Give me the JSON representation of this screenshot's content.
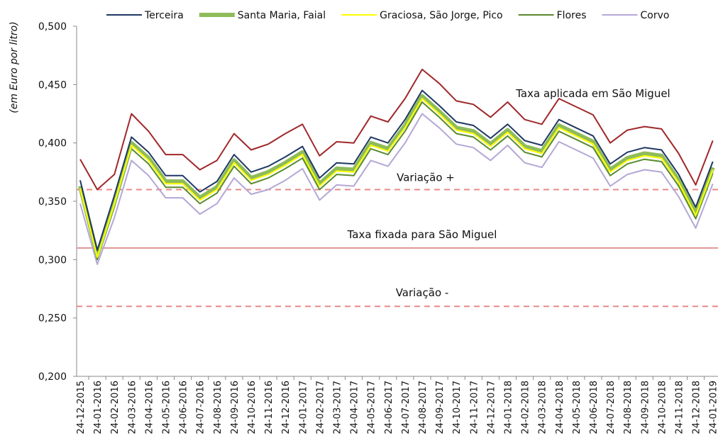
{
  "chart_data": {
    "type": "line",
    "y_label": "(em Euro por litro)",
    "ylim": [
      0.2,
      0.5
    ],
    "yticks": [
      {
        "value": 0.2,
        "label": "0,200"
      },
      {
        "value": 0.25,
        "label": "0,250"
      },
      {
        "value": 0.3,
        "label": "0,300"
      },
      {
        "value": 0.35,
        "label": "0,350"
      },
      {
        "value": 0.4,
        "label": "0,400"
      },
      {
        "value": 0.45,
        "label": "0,450"
      },
      {
        "value": 0.5,
        "label": "0,500"
      }
    ],
    "grid": false,
    "legend": "top",
    "categories": [
      "24-12-2015",
      "24-01-2016",
      "24-02-2016",
      "24-03-2016",
      "24-04-2016",
      "24-05-2016",
      "24-06-2016",
      "24-07-2016",
      "24-08-2016",
      "24-09-2016",
      "24-10-2016",
      "24-11-2016",
      "24-12-2016",
      "24-01-2017",
      "24-02-2017",
      "24-03-2017",
      "24-04-2017",
      "24-05-2017",
      "24-06-2017",
      "24-07-2017",
      "24-08-2017",
      "24-09-2017",
      "24-10-2017",
      "24-11-2017",
      "24-12-2017",
      "24-01-2018",
      "24-02-2018",
      "24-03-2018",
      "24-04-2018",
      "24-05-2018",
      "24-06-2018",
      "24-07-2018",
      "24-08-2018",
      "24-09-2018",
      "24-10-2018",
      "24-11-2018",
      "24-12-2018",
      "24-01-2019"
    ],
    "series": [
      {
        "name": "Terceira",
        "color": "#1f3864",
        "width": 2,
        "in_legend": true,
        "values": [
          0.368,
          0.308,
          0.355,
          0.405,
          0.392,
          0.372,
          0.372,
          0.358,
          0.367,
          0.39,
          0.375,
          0.38,
          0.388,
          0.397,
          0.37,
          0.383,
          0.382,
          0.405,
          0.4,
          0.42,
          0.445,
          0.432,
          0.418,
          0.415,
          0.404,
          0.416,
          0.402,
          0.398,
          0.42,
          0.413,
          0.406,
          0.382,
          0.392,
          0.396,
          0.394,
          0.373,
          0.345,
          0.384
        ]
      },
      {
        "name": "Santa Maria, Faial",
        "color": "#8fbc5a",
        "width": 6,
        "in_legend": true,
        "values": [
          0.363,
          0.304,
          0.35,
          0.4,
          0.387,
          0.367,
          0.367,
          0.353,
          0.362,
          0.385,
          0.37,
          0.375,
          0.383,
          0.392,
          0.365,
          0.378,
          0.377,
          0.4,
          0.395,
          0.415,
          0.44,
          0.427,
          0.413,
          0.41,
          0.399,
          0.411,
          0.397,
          0.393,
          0.415,
          0.408,
          0.401,
          0.377,
          0.387,
          0.391,
          0.389,
          0.368,
          0.34,
          0.379
        ]
      },
      {
        "name": "Graciosa, São Jorge, Pico",
        "color": "#ffff00",
        "width": 2,
        "in_legend": true,
        "values": [
          0.361,
          0.302,
          0.348,
          0.398,
          0.385,
          0.365,
          0.365,
          0.351,
          0.36,
          0.383,
          0.368,
          0.373,
          0.381,
          0.39,
          0.363,
          0.376,
          0.375,
          0.398,
          0.393,
          0.413,
          0.438,
          0.425,
          0.411,
          0.408,
          0.397,
          0.409,
          0.395,
          0.391,
          0.413,
          0.406,
          0.399,
          0.375,
          0.385,
          0.389,
          0.387,
          0.366,
          0.338,
          0.377
        ]
      },
      {
        "name": "Flores",
        "color": "#5a8a2e",
        "width": 2,
        "in_legend": true,
        "values": [
          0.358,
          0.3,
          0.345,
          0.395,
          0.382,
          0.362,
          0.362,
          0.348,
          0.357,
          0.38,
          0.365,
          0.37,
          0.378,
          0.387,
          0.36,
          0.373,
          0.372,
          0.395,
          0.39,
          0.41,
          0.435,
          0.422,
          0.408,
          0.405,
          0.394,
          0.406,
          0.392,
          0.388,
          0.41,
          0.403,
          0.396,
          0.372,
          0.382,
          0.386,
          0.384,
          0.363,
          0.335,
          0.374
        ]
      },
      {
        "name": "Corvo",
        "color": "#b4a7d6",
        "width": 2,
        "in_legend": true,
        "values": [
          0.348,
          0.296,
          0.336,
          0.385,
          0.372,
          0.353,
          0.353,
          0.339,
          0.348,
          0.37,
          0.356,
          0.36,
          0.368,
          0.378,
          0.351,
          0.364,
          0.363,
          0.385,
          0.38,
          0.4,
          0.425,
          0.413,
          0.399,
          0.396,
          0.385,
          0.398,
          0.383,
          0.379,
          0.401,
          0.394,
          0.387,
          0.363,
          0.373,
          0.377,
          0.375,
          0.354,
          0.327,
          0.365
        ]
      },
      {
        "name": "Taxa aplicada em São Miguel",
        "color": "#a0282b",
        "width": 2,
        "in_legend": false,
        "values": [
          0.386,
          0.36,
          0.373,
          0.425,
          0.41,
          0.39,
          0.39,
          0.377,
          0.385,
          0.408,
          0.394,
          0.399,
          0.408,
          0.416,
          0.389,
          0.401,
          0.4,
          0.423,
          0.418,
          0.438,
          0.463,
          0.451,
          0.436,
          0.433,
          0.422,
          0.435,
          0.42,
          0.416,
          0.438,
          0.431,
          0.424,
          0.4,
          0.411,
          0.414,
          0.412,
          0.391,
          0.364,
          0.402
        ]
      }
    ],
    "reference_lines": [
      {
        "value": 0.36,
        "label": "Variação +",
        "style": "dashed",
        "color": "#e8898a"
      },
      {
        "value": 0.31,
        "label": "Taxa fixada para São Miguel",
        "style": "solid",
        "color": "#e09596"
      },
      {
        "value": 0.26,
        "label": "Variação -",
        "style": "dashed",
        "color": "#e8898a"
      }
    ]
  }
}
